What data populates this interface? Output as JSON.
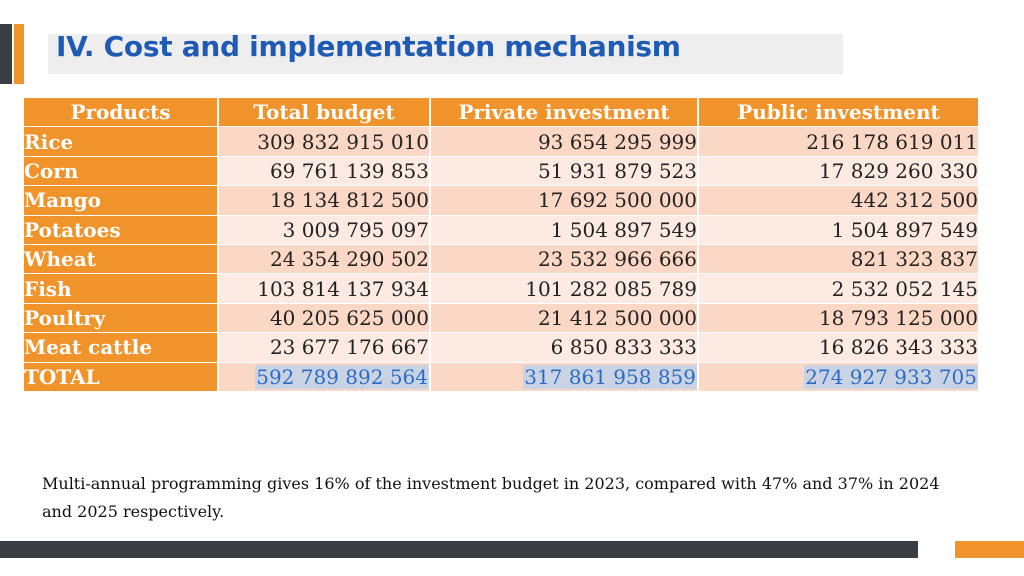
{
  "slide": {
    "title": "IV. Cost and implementation mechanism",
    "note": "Multi-annual programming gives 16% of the investment budget in 2023, compared with 47% and 37% in 2024 and 2025 respectively.",
    "colors": {
      "accent": "#f0932b",
      "title": "#1f5bb4",
      "dark": "#3a3d44",
      "row_a": "#fbd7c5",
      "row_b": "#fdeae2",
      "total_text": "#2b6cc4"
    }
  },
  "table": {
    "headers": [
      "Products",
      "Total budget",
      "Private investment",
      "Public investment"
    ],
    "rows": [
      {
        "product": "Rice",
        "total": "309 832 915 010",
        "private": "93 654 295 999",
        "public": "216 178 619 011"
      },
      {
        "product": "Corn",
        "total": "69 761 139 853",
        "private": "51 931 879 523",
        "public": "17 829 260 330"
      },
      {
        "product": "Mango",
        "total": "18 134 812 500",
        "private": "17 692 500 000",
        "public": "442 312 500"
      },
      {
        "product": "Potatoes",
        "total": "3 009 795 097",
        "private": "1 504 897 549",
        "public": "1 504 897 549"
      },
      {
        "product": "Wheat",
        "total": "24 354 290 502",
        "private": "23 532 966 666",
        "public": "821 323 837"
      },
      {
        "product": "Fish",
        "total": "103 814 137 934",
        "private": "101 282 085 789",
        "public": "2 532 052 145"
      },
      {
        "product": "Poultry",
        "total": "40 205 625 000",
        "private": "21 412 500 000",
        "public": "18 793 125 000"
      },
      {
        "product": "Meat cattle",
        "total": "23 677 176 667",
        "private": "6 850 833 333",
        "public": "16 826 343 333"
      }
    ],
    "total_row": {
      "product": "TOTAL",
      "total": "592 789 892 564",
      "private": "317 861 958 859",
      "public": "274 927 933 705"
    }
  }
}
